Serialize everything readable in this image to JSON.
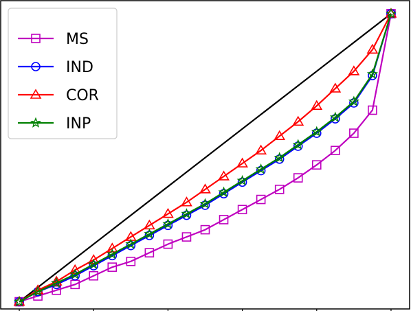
{
  "chart_data": {
    "type": "line",
    "title": "",
    "xlabel": "",
    "ylabel": "",
    "xlim": [
      -0.05,
      1.05
    ],
    "ylim": [
      -0.025,
      1.045
    ],
    "grid": false,
    "legend_position": "top-left",
    "x": [
      0,
      0.05,
      0.1,
      0.15,
      0.2,
      0.25,
      0.3,
      0.35,
      0.4,
      0.45,
      0.5,
      0.55,
      0.6,
      0.65,
      0.7,
      0.75,
      0.8,
      0.85,
      0.9,
      0.95,
      1.0
    ],
    "reference_line": {
      "x": [
        0,
        1
      ],
      "y": [
        0,
        1
      ],
      "color": "#000000"
    },
    "series": [
      {
        "name": "MS",
        "color": "#bf00bf",
        "marker": "square",
        "values": [
          0,
          0.02,
          0.04,
          0.06,
          0.09,
          0.12,
          0.14,
          0.17,
          0.2,
          0.225,
          0.25,
          0.285,
          0.32,
          0.355,
          0.39,
          0.43,
          0.475,
          0.525,
          0.585,
          0.665,
          1.0
        ]
      },
      {
        "name": "IND",
        "color": "#0000ff",
        "marker": "circle",
        "values": [
          0,
          0.035,
          0.06,
          0.09,
          0.125,
          0.16,
          0.195,
          0.23,
          0.265,
          0.3,
          0.335,
          0.375,
          0.415,
          0.455,
          0.495,
          0.54,
          0.585,
          0.635,
          0.69,
          0.785,
          1.0
        ]
      },
      {
        "name": "COR",
        "color": "#ff0000",
        "marker": "triangle",
        "values": [
          0,
          0.04,
          0.07,
          0.11,
          0.145,
          0.185,
          0.225,
          0.265,
          0.305,
          0.345,
          0.39,
          0.435,
          0.48,
          0.525,
          0.575,
          0.625,
          0.68,
          0.74,
          0.8,
          0.875,
          1.0
        ]
      },
      {
        "name": "INP",
        "color": "#008000",
        "marker": "star",
        "values": [
          0,
          0.035,
          0.065,
          0.095,
          0.13,
          0.165,
          0.2,
          0.235,
          0.27,
          0.305,
          0.34,
          0.38,
          0.42,
          0.46,
          0.5,
          0.545,
          0.59,
          0.64,
          0.695,
          0.79,
          1.0
        ]
      }
    ]
  }
}
